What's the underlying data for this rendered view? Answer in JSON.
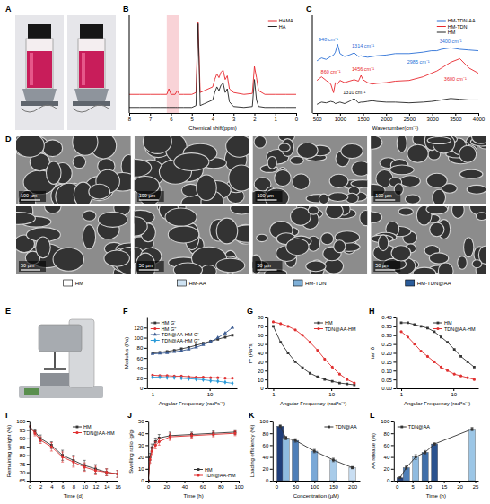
{
  "chart_data": [
    {
      "panel": "B",
      "type": "line",
      "x_label": "Chemical shift(ppm)",
      "x": [
        8,
        7.5,
        7,
        6.5,
        6.2,
        6.1,
        6.0,
        5.8,
        5.7,
        5.6,
        5.4,
        5.0,
        4.8,
        4.7,
        4.6,
        4.4,
        4.0,
        3.9,
        3.8,
        3.7,
        3.6,
        3.5,
        3.4,
        3.3,
        3.2,
        3.0,
        2.5,
        2.1,
        2.0,
        1.9,
        1.8,
        1.5,
        1.0,
        0.5,
        0
      ],
      "xlim": [
        8,
        0
      ],
      "xticks": [
        8,
        7,
        6,
        5,
        4,
        3,
        2,
        1,
        0
      ],
      "ylim": [
        0,
        1.05
      ],
      "tick_labels": "x",
      "legend": "upper right",
      "highlight": {
        "range": [
          5.6,
          6.2
        ],
        "color": "#f6c1c6"
      },
      "series": [
        {
          "name": "HAMA",
          "color": "#e8262c",
          "values": [
            0.2,
            0.2,
            0.2,
            0.2,
            0.2,
            0.26,
            0.2,
            0.2,
            0.24,
            0.2,
            0.2,
            0.2,
            0.22,
            0.98,
            0.22,
            0.24,
            0.28,
            0.36,
            0.42,
            0.38,
            0.44,
            0.46,
            0.36,
            0.4,
            0.26,
            0.22,
            0.2,
            0.21,
            0.5,
            0.38,
            0.24,
            0.2,
            0.2,
            0.2,
            0.2
          ]
        },
        {
          "name": "HA",
          "color": "#222222",
          "values": [
            0.06,
            0.06,
            0.06,
            0.06,
            0.06,
            0.06,
            0.06,
            0.06,
            0.06,
            0.06,
            0.06,
            0.06,
            0.08,
            0.96,
            0.08,
            0.1,
            0.14,
            0.22,
            0.28,
            0.24,
            0.3,
            0.32,
            0.22,
            0.26,
            0.12,
            0.07,
            0.06,
            0.07,
            0.36,
            0.14,
            0.07,
            0.06,
            0.06,
            0.06,
            0.06
          ]
        }
      ]
    },
    {
      "panel": "C",
      "type": "line",
      "x_label": "Wavenumber(cm⁻¹)",
      "x": [
        500,
        600,
        700,
        800,
        860,
        900,
        948,
        1000,
        1100,
        1200,
        1310,
        1400,
        1456,
        1500,
        1600,
        1700,
        1800,
        2000,
        2200,
        2500,
        2800,
        2985,
        3100,
        3200,
        3400,
        3600,
        3800,
        4000
      ],
      "xlim": [
        400,
        4000
      ],
      "xticks": [
        500,
        1000,
        1500,
        2000,
        2500,
        3000,
        3500,
        4000
      ],
      "ylim": [
        0,
        1.35
      ],
      "tick_labels": "x",
      "legend": "upper right",
      "series": [
        {
          "name": "HM-TDN-AA",
          "color": "#2a6fd6",
          "values": [
            0.72,
            0.76,
            0.74,
            0.78,
            0.8,
            0.84,
            0.95,
            0.82,
            0.78,
            0.8,
            0.83,
            0.78,
            0.79,
            0.78,
            0.77,
            0.78,
            0.79,
            0.8,
            0.82,
            0.82,
            0.84,
            0.86,
            0.86,
            0.88,
            0.9,
            0.88,
            0.87,
            0.86
          ]
        },
        {
          "name": "HM-TDN",
          "color": "#e8262c",
          "values": [
            0.45,
            0.5,
            0.45,
            0.4,
            0.28,
            0.42,
            0.4,
            0.45,
            0.42,
            0.44,
            0.46,
            0.44,
            0.52,
            0.46,
            0.42,
            0.4,
            0.41,
            0.42,
            0.44,
            0.45,
            0.5,
            0.55,
            0.58,
            0.62,
            0.7,
            0.75,
            0.62,
            0.55
          ]
        },
        {
          "name": "HM",
          "color": "#222222",
          "values": [
            0.12,
            0.15,
            0.14,
            0.16,
            0.15,
            0.13,
            0.14,
            0.15,
            0.13,
            0.16,
            0.2,
            0.14,
            0.15,
            0.15,
            0.16,
            0.17,
            0.16,
            0.15,
            0.15,
            0.14,
            0.15,
            0.16,
            0.17,
            0.18,
            0.2,
            0.19,
            0.18,
            0.18
          ]
        }
      ],
      "annotations": [
        {
          "text": "948 cm⁻¹",
          "x": 750,
          "y": 0.99,
          "color": "#2a6fd6"
        },
        {
          "text": "1314 cm⁻¹",
          "x": 1500,
          "y": 0.9,
          "color": "#2a6fd6"
        },
        {
          "text": "2985 cm⁻¹",
          "x": 2700,
          "y": 0.68,
          "color": "#2a6fd6"
        },
        {
          "text": "3400 cm⁻¹",
          "x": 3400,
          "y": 0.96,
          "color": "#2a6fd6"
        },
        {
          "text": "860 cm⁻¹",
          "x": 800,
          "y": 0.55,
          "color": "#e8262c"
        },
        {
          "text": "1456 cm⁻¹",
          "x": 1500,
          "y": 0.58,
          "color": "#e8262c"
        },
        {
          "text": "3600 cm⁻¹",
          "x": 3500,
          "y": 0.44,
          "color": "#e8262c"
        },
        {
          "text": "1310 cm⁻¹",
          "x": 1310,
          "y": 0.26,
          "color": "#222222"
        }
      ]
    },
    {
      "panel": "F",
      "type": "line",
      "log": "x",
      "x_label": "Angular Frequency (rad*s⁻¹)",
      "y_label": "Modulus (Pa)",
      "x": [
        1,
        1.34,
        1.8,
        2.4,
        3.2,
        4.3,
        5.8,
        7.7,
        10.4,
        13.9,
        18.7,
        25
      ],
      "xlim": [
        0.8,
        30
      ],
      "xticks": [
        1,
        10
      ],
      "ylim": [
        0,
        140
      ],
      "yticks": [
        0,
        20,
        40,
        60,
        80,
        100,
        120
      ],
      "legend": "upper left",
      "series": [
        {
          "name": "HM G'",
          "color": "#333333",
          "marker": "square",
          "values": [
            70,
            71,
            73,
            75,
            78,
            81,
            85,
            89,
            93,
            97,
            101,
            105
          ]
        },
        {
          "name": "HM G''",
          "color": "#e03030",
          "marker": "circle",
          "values": [
            26,
            25,
            25,
            24,
            24,
            23,
            22,
            22,
            21,
            21,
            20,
            20
          ]
        },
        {
          "name": "TDN@AA-HM G'",
          "color": "#3b5b92",
          "marker": "triangle",
          "values": [
            68,
            69,
            70,
            72,
            74,
            77,
            81,
            86,
            92,
            100,
            109,
            120
          ]
        },
        {
          "name": "TDN@AA-HM G''",
          "color": "#2a9ad8",
          "marker": "diamond",
          "values": [
            22,
            22,
            21,
            21,
            20,
            19,
            18,
            17,
            15,
            14,
            12,
            10
          ]
        }
      ]
    },
    {
      "panel": "G",
      "type": "line",
      "log": "x",
      "x_label": "Angular Frequency (rad*s⁻¹)",
      "y_label": "η* (Pa*s)",
      "x": [
        1,
        1.34,
        1.8,
        2.4,
        3.2,
        4.3,
        5.8,
        7.7,
        10.4,
        13.9,
        18.7,
        25
      ],
      "xlim": [
        0.8,
        30
      ],
      "xticks": [
        1,
        10
      ],
      "ylim": [
        0,
        80
      ],
      "yticks": [
        0,
        10,
        20,
        30,
        40,
        50,
        60,
        70,
        80
      ],
      "legend": "upper right",
      "series": [
        {
          "name": "HM",
          "color": "#333333",
          "marker": "square",
          "values": [
            70,
            52,
            40,
            30,
            23,
            17,
            13,
            10,
            8,
            6,
            5,
            4
          ]
        },
        {
          "name": "TDN@AA-HM",
          "color": "#e03030",
          "marker": "circle",
          "values": [
            75,
            73,
            70,
            66,
            60,
            52,
            43,
            33,
            24,
            16,
            10,
            6
          ]
        }
      ]
    },
    {
      "panel": "H",
      "type": "line",
      "log": "x",
      "x_label": "Angular Frequency (rad*s⁻¹)",
      "y_label": "tan δ",
      "x": [
        1,
        1.34,
        1.8,
        2.4,
        3.2,
        4.3,
        5.8,
        7.7,
        10.4,
        13.9,
        18.7,
        25
      ],
      "xlim": [
        0.8,
        30
      ],
      "xticks": [
        1,
        10
      ],
      "ylim": [
        0,
        0.4
      ],
      "yticks": [
        {
          "value": 0,
          "label": "0.00"
        },
        {
          "value": 0.05,
          "label": "0.05"
        },
        {
          "value": 0.1,
          "label": "0.10"
        },
        {
          "value": 0.15,
          "label": "0.15"
        },
        {
          "value": 0.2,
          "label": "0.20"
        },
        {
          "value": 0.25,
          "label": "0.25"
        },
        {
          "value": 0.3,
          "label": "0.30"
        },
        {
          "value": 0.35,
          "label": "0.35"
        },
        {
          "value": 0.4,
          "label": "0.40"
        }
      ],
      "legend": "upper right",
      "series": [
        {
          "name": "HM",
          "color": "#333333",
          "marker": "square",
          "values": [
            0.37,
            0.37,
            0.36,
            0.35,
            0.34,
            0.32,
            0.29,
            0.26,
            0.22,
            0.18,
            0.15,
            0.12
          ]
        },
        {
          "name": "TDN@AA-HM",
          "color": "#e03030",
          "marker": "circle",
          "values": [
            0.32,
            0.29,
            0.25,
            0.21,
            0.18,
            0.15,
            0.12,
            0.1,
            0.08,
            0.07,
            0.06,
            0.05
          ]
        }
      ]
    },
    {
      "panel": "I",
      "type": "line",
      "x_label": "Time (d)",
      "y_label": "Remaining weight (%)",
      "x": [
        0,
        1,
        2,
        4,
        6,
        8,
        10,
        12,
        14,
        16
      ],
      "xlim": [
        0,
        16
      ],
      "xticks": [
        0,
        2,
        4,
        6,
        8,
        10,
        12,
        14,
        16
      ],
      "ylim": [
        65,
        100
      ],
      "yticks": [
        65,
        70,
        75,
        80,
        85,
        90,
        95,
        100
      ],
      "legend": "upper right",
      "series": [
        {
          "name": "HM",
          "color": "#333333",
          "marker": "square",
          "values": [
            97,
            94,
            90,
            86,
            80,
            77,
            74,
            72,
            70,
            69
          ],
          "errors": [
            0,
            1.5,
            2,
            2,
            3,
            3,
            3,
            2.5,
            2,
            2
          ]
        },
        {
          "name": "TDN@AA-HM",
          "color": "#e03030",
          "marker": "circle",
          "values": [
            97,
            93,
            89,
            85,
            79,
            76,
            73,
            71,
            70,
            69
          ],
          "errors": [
            0,
            1.5,
            2,
            2.5,
            3,
            3,
            2.5,
            2.5,
            2,
            2
          ]
        }
      ]
    },
    {
      "panel": "J",
      "type": "line",
      "x_label": "Time (h)",
      "y_label": "Swelling ratio (g/g)",
      "x": [
        0,
        2,
        4,
        8,
        12,
        24,
        48,
        72,
        96
      ],
      "xlim": [
        0,
        100
      ],
      "xticks": [
        0,
        20,
        40,
        60,
        80,
        100
      ],
      "ylim": [
        0,
        50
      ],
      "yticks": [
        0,
        10,
        20,
        30,
        40,
        50
      ],
      "legend": "lower right",
      "series": [
        {
          "name": "HM",
          "color": "#333333",
          "marker": "square",
          "values": [
            0,
            20,
            28,
            33,
            36,
            38,
            39,
            40,
            41
          ],
          "errors": [
            0,
            3,
            3,
            3,
            3,
            3,
            2,
            2,
            2
          ]
        },
        {
          "name": "TDN@AA-HM",
          "color": "#e03030",
          "marker": "circle",
          "values": [
            0,
            18,
            25,
            30,
            33,
            37,
            38,
            39,
            40
          ],
          "errors": [
            0,
            3,
            3,
            3,
            3,
            3,
            2,
            2,
            2
          ]
        }
      ]
    },
    {
      "panel": "K",
      "type": "bar",
      "x_label": "Concentration (µM)",
      "y_label": "Loading efficiency (%)",
      "x": [
        10,
        25,
        50,
        100,
        150,
        200
      ],
      "xlim": [
        -10,
        220
      ],
      "xticks": [
        0,
        50,
        100,
        150,
        200
      ],
      "ylim": [
        0,
        100
      ],
      "yticks": [
        0,
        20,
        40,
        60,
        80,
        100
      ],
      "legend": "upper right",
      "series": [
        {
          "name": "TDN@AA",
          "color": "#333333",
          "marker": "square",
          "line_style": "solid",
          "colors": [
            "#1f3d7a",
            "#8fbbe0",
            "#4f7fb8",
            "#7aa8d6",
            "#a8cbe9",
            "#c9def2"
          ],
          "values": [
            92,
            72,
            68,
            50,
            35,
            22
          ],
          "errors": [
            2,
            3,
            3,
            3,
            3,
            2
          ]
        }
      ]
    },
    {
      "panel": "L",
      "type": "bar",
      "x_label": "Time (h)",
      "y_label": "AA release (%)",
      "x": [
        1,
        3,
        6,
        9,
        12,
        24
      ],
      "xlim": [
        -1,
        26
      ],
      "xticks": [
        0,
        5,
        10,
        15,
        20,
        25
      ],
      "ylim": [
        0,
        100
      ],
      "yticks": [
        0,
        20,
        40,
        60,
        80,
        100
      ],
      "legend": "upper left",
      "series": [
        {
          "name": "TDN@AA",
          "color": "#333333",
          "marker": "square",
          "line_style": "solid",
          "colors": [
            "#1f3d7a",
            "#4f7fb8",
            "#8fbbe0",
            "#3f6ea8",
            "#2a528e",
            "#9cc6e6"
          ],
          "values": [
            5,
            22,
            40,
            48,
            62,
            87
          ],
          "errors": [
            1,
            3,
            4,
            3,
            2,
            3
          ]
        }
      ]
    }
  ],
  "figure_panels": [
    {
      "panel": "A"
    },
    {
      "panel": "D",
      "scale_bars": [
        [
          "100 µm",
          "100 µm",
          "100 µm",
          "100 µm"
        ],
        [
          "50 µm",
          "50 µm",
          "50 µm",
          "50 µm"
        ]
      ],
      "groups": [
        "HM",
        "HM-AA",
        "HM-TDN",
        "HM-TDN@AA"
      ],
      "colors": [
        "#ffffff",
        "#cfe3f3",
        "#7fb0d8",
        "#2b5c9a"
      ]
    },
    {
      "panel": "E"
    }
  ]
}
